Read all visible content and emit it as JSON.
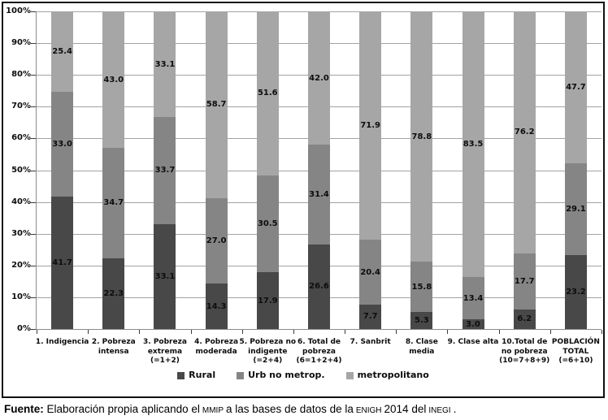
{
  "chart_data": {
    "type": "bar",
    "stacked": true,
    "title": "",
    "xlabel": "",
    "ylabel": "",
    "ylim": [
      0,
      100
    ],
    "grid": true,
    "legend_position": "bottom",
    "y_ticks": [
      "0%",
      "10%",
      "20%",
      "30%",
      "40%",
      "50%",
      "60%",
      "70%",
      "80%",
      "90%",
      "100%"
    ],
    "categories": [
      [
        "1. Indigencia"
      ],
      [
        "2. Pobreza",
        "intensa"
      ],
      [
        "3. Pobreza",
        "extrema",
        "(=1+2)"
      ],
      [
        "4. Pobreza",
        "moderada"
      ],
      [
        "5. Pobreza no",
        "indigente",
        "(=2+4)"
      ],
      [
        "6. Total de",
        "pobreza",
        "(6=1+2+4)"
      ],
      [
        "7. Sanbrit"
      ],
      [
        "8. Clase",
        "media"
      ],
      [
        "9. Clase alta"
      ],
      [
        "10.Total de",
        "no pobreza",
        "(10=7+8+9)"
      ],
      [
        "POBLACIÓN",
        "TOTAL",
        "(=6+10)"
      ]
    ],
    "series": [
      {
        "name": "Rural",
        "color": "#484848",
        "values": [
          41.7,
          22.3,
          33.1,
          14.3,
          17.9,
          26.6,
          7.7,
          5.3,
          3.0,
          6.2,
          23.2
        ]
      },
      {
        "name": "Urb no metrop.",
        "color": "#858585",
        "values": [
          33.0,
          34.7,
          33.7,
          27.0,
          30.5,
          31.4,
          20.4,
          15.8,
          13.4,
          17.7,
          29.1
        ]
      },
      {
        "name": "metropolitano",
        "color": "#a6a6a6",
        "values": [
          25.4,
          43.0,
          33.1,
          58.7,
          51.6,
          42.0,
          71.9,
          78.8,
          83.5,
          76.2,
          47.7
        ]
      }
    ]
  },
  "footer": {
    "label": "Fuente:",
    "text1": " Elaboración propia aplicando el",
    "acr1": "MMIP",
    "text2": "a las bases de datos de la",
    "acr2": "ENIGH",
    "text3": "2014 del",
    "acr3": "INEGI",
    "text4": "."
  }
}
